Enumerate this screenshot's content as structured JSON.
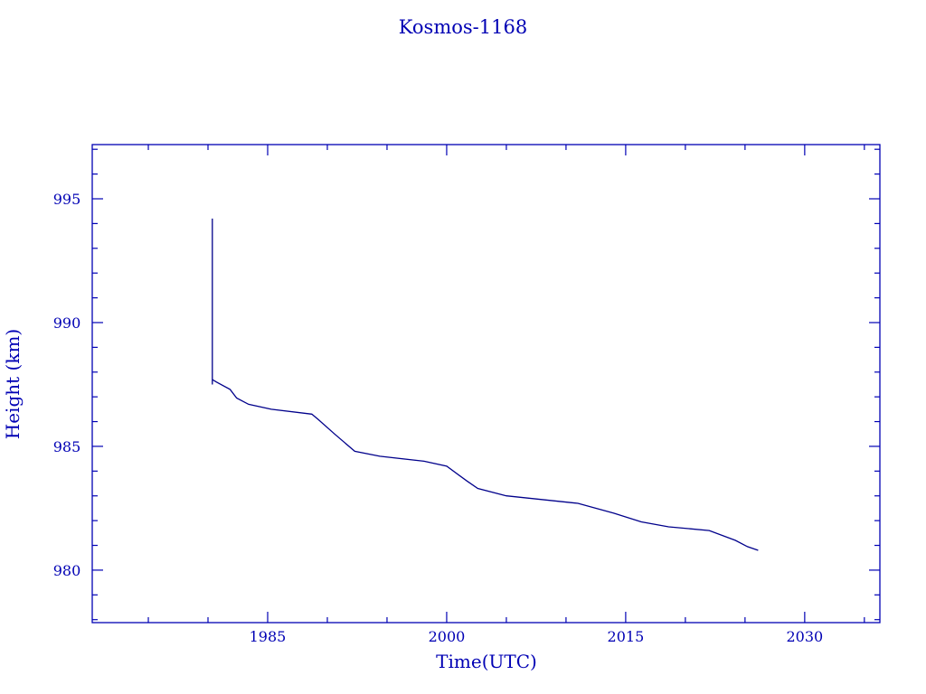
{
  "chart_data": {
    "type": "line",
    "title": "Kosmos-1168",
    "xlabel": "Time(UTC)",
    "ylabel": "Height (km)",
    "xlim": [
      1970.3,
      2036.3
    ],
    "ylim": [
      977.88,
      997.19
    ],
    "x_ticks": [
      1985,
      2000,
      2015,
      2030
    ],
    "y_ticks": [
      980,
      985,
      990,
      995
    ],
    "grid": false,
    "color": "#00008b",
    "axis_color": "#0000b4",
    "series": [
      {
        "x": [
          1980.36,
          1980.36,
          1980.36,
          1980.7,
          1981.85,
          1982.4,
          1983.4,
          1985.3,
          1988.7,
          1989.2,
          1990.6,
          1992.3,
          1994.4,
          1998.1,
          2000.0,
          2001.7,
          2002.6,
          2005.0,
          2011.0,
          2014.0,
          2016.3,
          2018.6,
          2022.0,
          2024.2,
          2025.2,
          2026.1
        ],
        "y": [
          994.2,
          987.5,
          987.7,
          987.6,
          987.3,
          986.95,
          986.7,
          986.5,
          986.3,
          986.1,
          985.5,
          984.8,
          984.6,
          984.4,
          984.2,
          983.6,
          983.3,
          983.0,
          982.7,
          982.3,
          981.95,
          981.75,
          981.6,
          981.2,
          980.95,
          980.8
        ]
      }
    ]
  }
}
